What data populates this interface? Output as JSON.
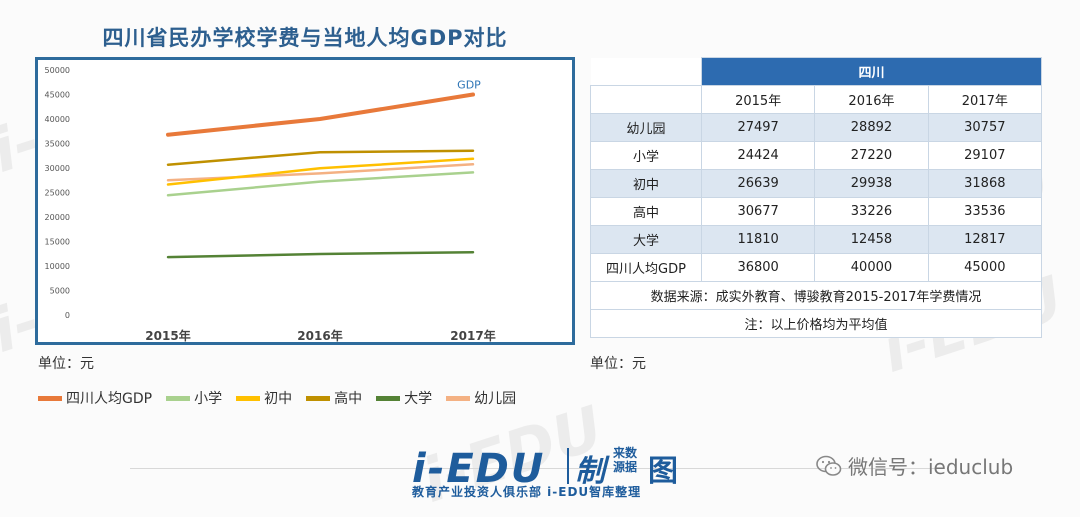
{
  "title": "四川省民办学校学费与当地人均GDP对比",
  "chart_data": {
    "type": "line",
    "categories": [
      "2015年",
      "2016年",
      "2017年"
    ],
    "ylim": [
      0,
      50000
    ],
    "yticks": [
      0,
      5000,
      10000,
      15000,
      20000,
      25000,
      30000,
      35000,
      40000,
      45000,
      50000
    ],
    "series": [
      {
        "name": "四川人均GDP",
        "values": [
          36800,
          40000,
          45000
        ],
        "color": "#e8793a",
        "width": 4
      },
      {
        "name": "小学",
        "values": [
          24424,
          27220,
          29107
        ],
        "color": "#a9d18e",
        "width": 2.5
      },
      {
        "name": "初中",
        "values": [
          26639,
          29938,
          31868
        ],
        "color": "#ffc000",
        "width": 2.5
      },
      {
        "name": "高中",
        "values": [
          30677,
          33226,
          33536
        ],
        "color": "#bf9000",
        "width": 2.5
      },
      {
        "name": "大学",
        "values": [
          11810,
          12458,
          12817
        ],
        "color": "#548235",
        "width": 2.5
      },
      {
        "name": "幼儿园",
        "values": [
          27497,
          28892,
          30757
        ],
        "color": "#f4b183",
        "width": 2.5
      }
    ],
    "annotation": "GDP",
    "unit": "单位：元"
  },
  "table": {
    "region": "四川",
    "years": [
      "2015年",
      "2016年",
      "2017年"
    ],
    "rows": [
      {
        "label": "幼儿园",
        "values": [
          "27497",
          "28892",
          "30757"
        ]
      },
      {
        "label": "小学",
        "values": [
          "24424",
          "27220",
          "29107"
        ]
      },
      {
        "label": "初中",
        "values": [
          "26639",
          "29938",
          "31868"
        ]
      },
      {
        "label": "高中",
        "values": [
          "30677",
          "33226",
          "33536"
        ]
      },
      {
        "label": "大学",
        "values": [
          "11810",
          "12458",
          "12817"
        ]
      },
      {
        "label": "四川人均GDP",
        "values": [
          "36800",
          "40000",
          "45000"
        ]
      }
    ],
    "source": "数据来源：成实外教育、博骏教育2015-2017年学费情况",
    "note": "注：以上价格均为平均值",
    "unit": "单位：元"
  },
  "brand": {
    "logo": "i-EDU",
    "zhi": "制",
    "src": "来数源据",
    "tu": "图",
    "sub": "教育产业投资人俱乐部 i-EDU智库整理"
  },
  "wechat": "微信号：ieduclub",
  "watermark": "i-EDU"
}
